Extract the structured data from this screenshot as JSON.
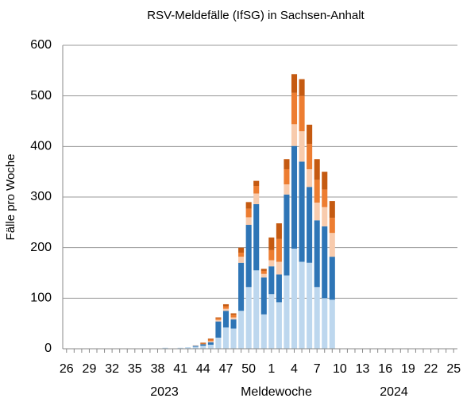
{
  "chart_data": {
    "type": "stacked_bar",
    "title": "RSV-Meldefälle (IfSG) in Sachsen-Anhalt",
    "y_label": "Fälle pro Woche",
    "x_label": "Meldewoche",
    "annotations": [
      "2023",
      "2024"
    ],
    "categories": [
      "26",
      null,
      null,
      "29",
      null,
      null,
      "32",
      null,
      null,
      "35",
      null,
      null,
      "38",
      null,
      null,
      "41",
      null,
      null,
      "44",
      null,
      null,
      "47",
      null,
      null,
      "50",
      null,
      null,
      "1",
      null,
      null,
      "4",
      null,
      null,
      "7",
      null,
      null,
      "10",
      null,
      null,
      "13",
      null,
      null,
      "16",
      null,
      null,
      "19",
      null,
      null,
      "22",
      null,
      null,
      "25"
    ],
    "series": [
      {
        "color": "#bdd7ee",
        "values": [
          0,
          0,
          0,
          0,
          0,
          0,
          0,
          0,
          0,
          0,
          0,
          0,
          0,
          2,
          0,
          2,
          3,
          4,
          6,
          8,
          22,
          42,
          40,
          75,
          122,
          155,
          68,
          108,
          92,
          145,
          198,
          172,
          170,
          122,
          100,
          97,
          0,
          0,
          0,
          0,
          0,
          0,
          0,
          0,
          0,
          0,
          0,
          0,
          0,
          0,
          0,
          0
        ]
      },
      {
        "color": "#2e75b6",
        "values": [
          0,
          0,
          0,
          0,
          0,
          0,
          0,
          0,
          0,
          0,
          0,
          0,
          0,
          0,
          0,
          0,
          0,
          2,
          3,
          5,
          32,
          33,
          18,
          95,
          123,
          131,
          73,
          55,
          55,
          160,
          203,
          198,
          150,
          132,
          142,
          85,
          0,
          0,
          0,
          0,
          0,
          0,
          0,
          0,
          0,
          0,
          0,
          0,
          0,
          0,
          0,
          0
        ]
      },
      {
        "color": "#f8cbad",
        "values": [
          0,
          0,
          0,
          0,
          0,
          0,
          0,
          0,
          0,
          0,
          0,
          0,
          0,
          0,
          0,
          0,
          0,
          1,
          0,
          2,
          3,
          4,
          4,
          12,
          15,
          21,
          7,
          12,
          25,
          20,
          43,
          60,
          35,
          35,
          38,
          47,
          0,
          0,
          0,
          0,
          0,
          0,
          0,
          0,
          0,
          0,
          0,
          0,
          0,
          0,
          0,
          0
        ]
      },
      {
        "color": "#ed7d31",
        "values": [
          0,
          0,
          0,
          0,
          0,
          0,
          0,
          0,
          0,
          0,
          0,
          0,
          0,
          0,
          0,
          0,
          0,
          0,
          1,
          3,
          3,
          5,
          5,
          8,
          17,
          15,
          6,
          20,
          45,
          30,
          62,
          70,
          50,
          45,
          35,
          30,
          0,
          0,
          0,
          0,
          0,
          0,
          0,
          0,
          0,
          0,
          0,
          0,
          0,
          0,
          0,
          0
        ]
      },
      {
        "color": "#c55a11",
        "values": [
          0,
          0,
          0,
          0,
          0,
          0,
          0,
          0,
          0,
          0,
          0,
          0,
          0,
          0,
          0,
          0,
          0,
          0,
          2,
          2,
          2,
          4,
          3,
          10,
          13,
          10,
          4,
          25,
          31,
          20,
          37,
          33,
          38,
          41,
          35,
          33,
          0,
          0,
          0,
          0,
          0,
          0,
          0,
          0,
          0,
          0,
          0,
          0,
          0,
          0,
          0,
          0
        ]
      }
    ],
    "ylim": [
      0,
      600
    ],
    "yticks": [
      0,
      100,
      200,
      300,
      400,
      500,
      600
    ],
    "grid": true
  }
}
